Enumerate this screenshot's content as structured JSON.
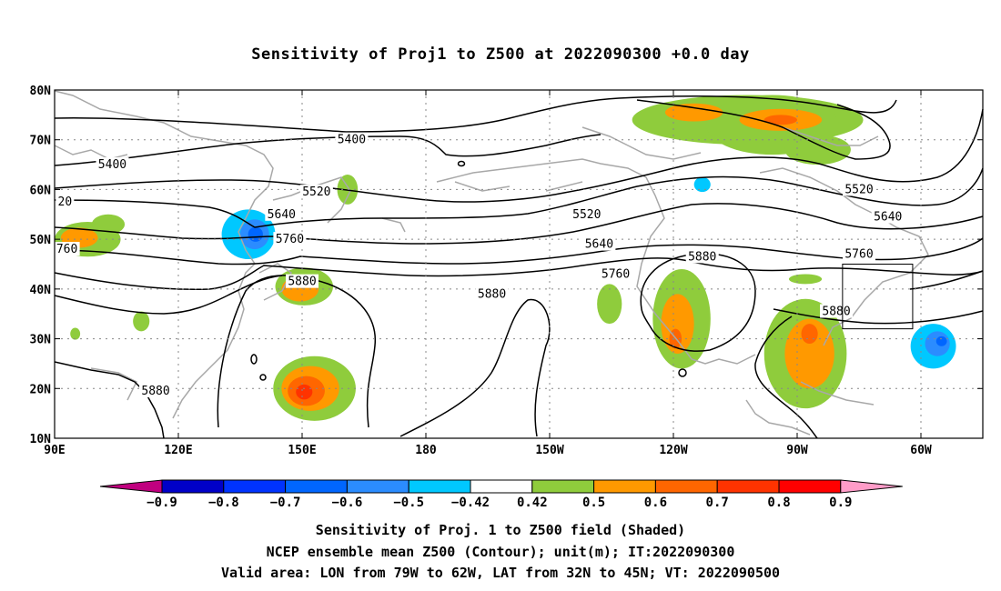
{
  "title": "Sensitivity of Proj1 to Z500 at 2022090300 +0.0 day",
  "map": {
    "lon_ticks": [
      {
        "lon": 90,
        "label": "90E"
      },
      {
        "lon": 120,
        "label": "120E"
      },
      {
        "lon": 150,
        "label": "150E"
      },
      {
        "lon": 180,
        "label": "180"
      },
      {
        "lon": 210,
        "label": "150W"
      },
      {
        "lon": 240,
        "label": "120W"
      },
      {
        "lon": 270,
        "label": "90W"
      },
      {
        "lon": 300,
        "label": "60W"
      }
    ],
    "lat_ticks": [
      {
        "lat": 80,
        "label": "80N"
      },
      {
        "lat": 70,
        "label": "70N"
      },
      {
        "lat": 60,
        "label": "60N"
      },
      {
        "lat": 50,
        "label": "50N"
      },
      {
        "lat": 40,
        "label": "40N"
      },
      {
        "lat": 30,
        "label": "30N"
      },
      {
        "lat": 20,
        "label": "20N"
      },
      {
        "lat": 10,
        "label": "10N"
      }
    ],
    "contour_labels": [
      {
        "text": "5400",
        "lon": 162,
        "lat": 70
      },
      {
        "text": "5400",
        "lon": 104,
        "lat": 65
      },
      {
        "text": "20",
        "lon": 92.5,
        "lat": 57.5
      },
      {
        "text": "5520",
        "lon": 153.5,
        "lat": 59.5
      },
      {
        "text": "5520",
        "lon": 219,
        "lat": 55
      },
      {
        "text": "5520",
        "lon": 285,
        "lat": 60
      },
      {
        "text": "5640",
        "lon": 145,
        "lat": 55
      },
      {
        "text": "5640",
        "lon": 222,
        "lat": 49
      },
      {
        "text": "5640",
        "lon": 292,
        "lat": 54.5
      },
      {
        "text": "760",
        "lon": 93,
        "lat": 48
      },
      {
        "text": "5760",
        "lon": 147,
        "lat": 50
      },
      {
        "text": "5760",
        "lon": 226,
        "lat": 43
      },
      {
        "text": "5760",
        "lon": 285,
        "lat": 47
      },
      {
        "text": "5880",
        "lon": 150,
        "lat": 41.5
      },
      {
        "text": "5880",
        "lon": 196,
        "lat": 39
      },
      {
        "text": "5880",
        "lon": 247,
        "lat": 46.5
      },
      {
        "text": "5880",
        "lon": 279.5,
        "lat": 35.5
      },
      {
        "text": "5880",
        "lon": 114.5,
        "lat": 19.5
      }
    ],
    "valid_box": {
      "lon_min": 281,
      "lon_max": 298,
      "lat_min": 32,
      "lat_max": 45
    },
    "shading": [
      {
        "lon": 98,
        "lat": 50,
        "rlon": 8,
        "rlat": 3.5,
        "value": 0.45
      },
      {
        "lon": 96,
        "lat": 50.3,
        "rlon": 4.5,
        "rlat": 2,
        "value": 0.55
      },
      {
        "lon": 103,
        "lat": 53,
        "rlon": 4,
        "rlat": 2,
        "value": 0.45
      },
      {
        "lon": 137,
        "lat": 51,
        "rlon": 6.5,
        "rlat": 5,
        "value": -0.45
      },
      {
        "lon": 138.5,
        "lat": 51,
        "rlon": 3.5,
        "rlat": 3,
        "value": -0.55
      },
      {
        "lon": 138.7,
        "lat": 51,
        "rlon": 1.8,
        "rlat": 1.5,
        "value": -0.65
      },
      {
        "lon": 150.5,
        "lat": 40.5,
        "rlon": 7,
        "rlat": 3.8,
        "value": 0.45
      },
      {
        "lon": 149.5,
        "lat": 40,
        "rlon": 4.5,
        "rlat": 2.5,
        "value": 0.55
      },
      {
        "lon": 161,
        "lat": 60,
        "rlon": 2.5,
        "rlat": 3,
        "value": 0.45
      },
      {
        "lon": 111,
        "lat": 33.5,
        "rlon": 2,
        "rlat": 2,
        "value": 0.45
      },
      {
        "lon": 153,
        "lat": 20,
        "rlon": 10,
        "rlat": 6.5,
        "value": 0.45
      },
      {
        "lon": 152,
        "lat": 20,
        "rlon": 7,
        "rlat": 4.5,
        "value": 0.55
      },
      {
        "lon": 151,
        "lat": 19.5,
        "rlon": 4.5,
        "rlat": 3,
        "value": 0.65
      },
      {
        "lon": 150.5,
        "lat": 19.3,
        "rlon": 2,
        "rlat": 1.5,
        "value": 0.75
      },
      {
        "lon": 258,
        "lat": 74,
        "rlon": 28,
        "rlat": 5,
        "value": 0.45
      },
      {
        "lon": 264,
        "lat": 73,
        "rlon": 16,
        "rlat": 6,
        "value": 0.45
      },
      {
        "lon": 275,
        "lat": 68,
        "rlon": 8,
        "rlat": 3,
        "value": 0.45
      },
      {
        "lon": 266,
        "lat": 74,
        "rlon": 10,
        "rlat": 2.2,
        "value": 0.55
      },
      {
        "lon": 245,
        "lat": 75.5,
        "rlon": 7,
        "rlat": 1.8,
        "value": 0.55
      },
      {
        "lon": 266,
        "lat": 74,
        "rlon": 4,
        "rlat": 1,
        "value": 0.65
      },
      {
        "lon": 247,
        "lat": 61,
        "rlon": 2,
        "rlat": 1.5,
        "value": -0.45
      },
      {
        "lon": 224.5,
        "lat": 37,
        "rlon": 3,
        "rlat": 4,
        "value": 0.45
      },
      {
        "lon": 242,
        "lat": 34,
        "rlon": 7,
        "rlat": 10,
        "value": 0.45
      },
      {
        "lon": 241,
        "lat": 33,
        "rlon": 4,
        "rlat": 6,
        "value": 0.55
      },
      {
        "lon": 240.5,
        "lat": 30,
        "rlon": 1.5,
        "rlat": 2,
        "value": 0.65
      },
      {
        "lon": 272,
        "lat": 27,
        "rlon": 10,
        "rlat": 11,
        "value": 0.45
      },
      {
        "lon": 273,
        "lat": 27,
        "rlon": 6,
        "rlat": 7,
        "value": 0.55
      },
      {
        "lon": 273,
        "lat": 31,
        "rlon": 2,
        "rlat": 2,
        "value": 0.65
      },
      {
        "lon": 272,
        "lat": 42,
        "rlon": 4,
        "rlat": 1,
        "value": 0.45
      },
      {
        "lon": 303,
        "lat": 28.5,
        "rlon": 5.5,
        "rlat": 4.5,
        "value": -0.45
      },
      {
        "lon": 304,
        "lat": 29,
        "rlon": 3,
        "rlat": 2.5,
        "value": -0.55
      },
      {
        "lon": 305,
        "lat": 29.5,
        "rlon": 1.3,
        "rlat": 1,
        "value": -0.65
      },
      {
        "lon": 95,
        "lat": 31,
        "rlon": 1.2,
        "rlat": 1.2,
        "value": 0.45
      }
    ]
  },
  "colorbar": {
    "levels": [
      "-0.9",
      "-0.8",
      "-0.7",
      "-0.6",
      "-0.5",
      "-0.42",
      "0.42",
      "0.5",
      "0.6",
      "0.7",
      "0.8",
      "0.9"
    ],
    "colors": [
      "#c0007f",
      "#0000c8",
      "#0033ff",
      "#0066ff",
      "#2b8cff",
      "#00c8ff",
      "#ffffff",
      "#8fcc3c",
      "#ff9900",
      "#ff6600",
      "#ff3300",
      "#ff0000",
      "#ff9cc8"
    ]
  },
  "captions": [
    "Sensitivity of Proj. 1 to Z500 field (Shaded)",
    "NCEP ensemble mean Z500 (Contour); unit(m); IT:2022090300",
    "Valid area: LON from 79W to 62W, LAT from 32N to 45N; VT: 2022090500"
  ]
}
